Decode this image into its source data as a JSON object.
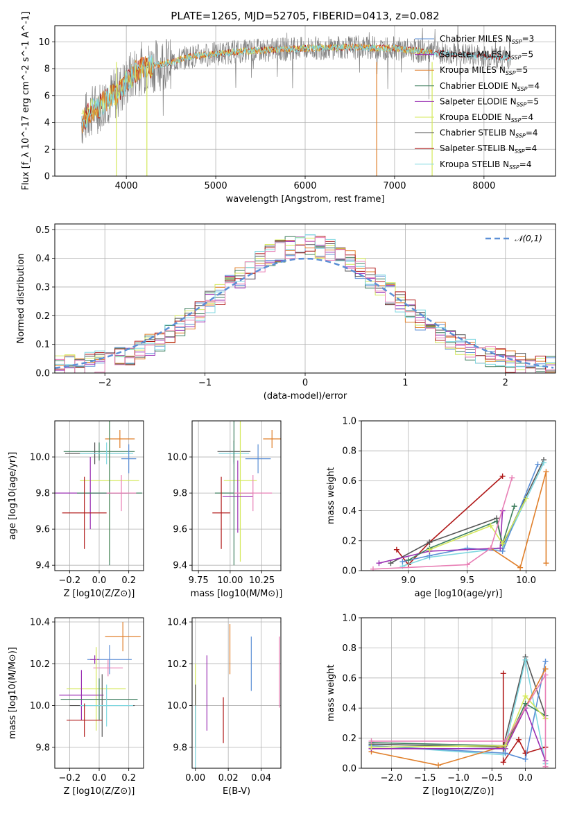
{
  "figure_title": "PLATE=1265, MJD=52705, FIBERID=0413, z=0.082",
  "colors": {
    "Chabrier MILES": "#5b8fd6",
    "Salpeter MILES": "#9a2fb3",
    "Kroupa MILES": "#e07f2a",
    "Chabrier ELODIE": "#3f7f5f",
    "Salpeter ELODIE": "#9a2fb3",
    "Kroupa ELODIE": "#d4e85a",
    "Chabrier STELIB": "#555555",
    "Salpeter STELIB": "#b01818",
    "Kroupa STELIB": "#7fd7e0",
    "data": "#808080",
    "gaussian": "#5b8fd6",
    "pink": "#e87fb5"
  },
  "chart_data": [
    {
      "id": "spectrum",
      "type": "line",
      "title": "PLATE=1265, MJD=52705, FIBERID=0413, z=0.082",
      "xlabel": "wavelength [Angstrom, rest frame]",
      "ylabel": "Flux [f_λ 10^-17 erg cm^-2 s^-1 A^-1]",
      "xlim": [
        3200,
        8800
      ],
      "ylim": [
        0,
        11.2
      ],
      "xticks": [
        4000,
        5000,
        6000,
        7000,
        8000
      ],
      "yticks": [
        0,
        2,
        4,
        6,
        8,
        10
      ],
      "legend_position": "right",
      "legend": [
        {
          "name": "Chabrier MILES",
          "nssp": "3"
        },
        {
          "name": "Salpeter MILES",
          "nssp": "5"
        },
        {
          "name": "Kroupa MILES",
          "nssp": "5"
        },
        {
          "name": "Chabrier ELODIE",
          "nssp": "4"
        },
        {
          "name": "Salpeter ELODIE",
          "nssp": "5"
        },
        {
          "name": "Kroupa ELODIE",
          "nssp": "4"
        },
        {
          "name": "Chabrier STELIB",
          "nssp": "4"
        },
        {
          "name": "Salpeter STELIB",
          "nssp": "4"
        },
        {
          "name": "Kroupa STELIB",
          "nssp": "4"
        }
      ],
      "continuum": {
        "x": [
          3500,
          3600,
          3700,
          3800,
          3900,
          4000,
          4100,
          4200,
          4300,
          4500,
          4700,
          5000,
          5300,
          5600,
          6000,
          6500,
          7000,
          7400,
          7800,
          8300
        ],
        "y": [
          4.0,
          4.8,
          5.2,
          5.8,
          6.2,
          7.0,
          7.8,
          8.1,
          8.2,
          8.5,
          8.9,
          9.1,
          9.3,
          9.4,
          9.5,
          9.6,
          9.5,
          9.2,
          9.0,
          8.8
        ]
      }
    },
    {
      "id": "residuals",
      "type": "line",
      "xlabel": "(data-model)/error",
      "ylabel": "Normed distribution",
      "xlim": [
        -2.5,
        2.5
      ],
      "ylim": [
        0,
        0.52
      ],
      "xticks": [
        -2,
        -1,
        0,
        1,
        2
      ],
      "yticks": [
        0.0,
        0.1,
        0.2,
        0.3,
        0.4,
        0.5
      ],
      "legend": [
        "𝒩(0,1)"
      ],
      "legend_position": "top-right",
      "gaussian": {
        "mean": 0,
        "sigma": 1
      }
    },
    {
      "id": "age_vs_Z",
      "type": "scatter",
      "xlabel": "Z [log10(Z/Z⊙)]",
      "ylabel": "age  [log10(age/yr)]",
      "xlim": [
        -0.3,
        0.3
      ],
      "ylim": [
        9.37,
        10.2
      ],
      "xticks": [
        -0.2,
        0.0,
        0.2
      ],
      "yticks": [
        9.4,
        9.6,
        9.8,
        10.0
      ],
      "points": [
        {
          "series": "Kroupa MILES",
          "x": 0.14,
          "y": 10.1,
          "xerr": 0.1,
          "yerr": 0.05
        },
        {
          "series": "Chabrier ELODIE",
          "x": 0.0,
          "y": 10.03,
          "xerr": 0.24,
          "yerr": 0.05
        },
        {
          "series": "Chabrier STELIB",
          "x": -0.03,
          "y": 10.02,
          "xerr": 0.2,
          "yerr": 0.06
        },
        {
          "series": "Kroupa STELIB",
          "x": 0.05,
          "y": 10.02,
          "xerr": 0.18,
          "yerr": 0.06
        },
        {
          "series": "Chabrier MILES",
          "x": 0.2,
          "y": 9.99,
          "xerr": 0.05,
          "yerr": 0.08
        },
        {
          "series": "Kroupa ELODIE",
          "x": 0.07,
          "y": 9.87,
          "xerr": 0.2,
          "yerr": 0.45
        },
        {
          "series": "Salpeter ELODIE",
          "x": -0.06,
          "y": 9.8,
          "xerr": 0.25,
          "yerr": 0.2
        },
        {
          "series": "Chabrier ELODIE",
          "x": 0.07,
          "y": 9.8,
          "xerr": 0.22,
          "yerr": 0.4
        },
        {
          "series": "pink",
          "x": 0.15,
          "y": 9.8,
          "xerr": 0.1,
          "yerr": 0.1
        },
        {
          "series": "Salpeter STELIB",
          "x": -0.1,
          "y": 9.69,
          "xerr": 0.15,
          "yerr": 0.2
        }
      ]
    },
    {
      "id": "age_vs_mass",
      "type": "scatter",
      "xlabel": "mass [log10(M/M⊙)]",
      "xlim": [
        9.7,
        10.4
      ],
      "ylim": [
        9.37,
        10.2
      ],
      "xticks": [
        9.75,
        10.0,
        10.25
      ],
      "yticks": [
        9.4,
        9.6,
        9.8,
        10.0
      ],
      "points": [
        {
          "series": "Kroupa MILES",
          "x": 10.33,
          "y": 10.1,
          "xerr": 0.07,
          "yerr": 0.05
        },
        {
          "series": "Chabrier STELIB",
          "x": 10.03,
          "y": 10.03,
          "xerr": 0.13,
          "yerr": 0.06
        },
        {
          "series": "Kroupa STELIB",
          "x": 10.03,
          "y": 10.02,
          "xerr": 0.12,
          "yerr": 0.06
        },
        {
          "series": "Chabrier MILES",
          "x": 10.22,
          "y": 9.99,
          "xerr": 0.1,
          "yerr": 0.08
        },
        {
          "series": "Kroupa ELODIE",
          "x": 10.08,
          "y": 9.87,
          "xerr": 0.13,
          "yerr": 0.45
        },
        {
          "series": "Salpeter ELODIE",
          "x": 10.06,
          "y": 9.78,
          "xerr": 0.12,
          "yerr": 0.2
        },
        {
          "series": "Chabrier ELODIE",
          "x": 10.03,
          "y": 9.8,
          "xerr": 0.15,
          "yerr": 0.4
        },
        {
          "series": "pink",
          "x": 10.18,
          "y": 9.8,
          "xerr": 0.15,
          "yerr": 0.1
        },
        {
          "series": "Salpeter STELIB",
          "x": 9.93,
          "y": 9.69,
          "xerr": 0.07,
          "yerr": 0.2
        }
      ]
    },
    {
      "id": "mass_weight_vs_age",
      "type": "line",
      "xlabel": "age  [log10(age/yr)]",
      "ylabel": "mass weight",
      "xlim": [
        8.6,
        10.25
      ],
      "ylim": [
        0,
        1
      ],
      "xticks": [
        9.0,
        9.5,
        10.0
      ],
      "yticks": [
        0.0,
        0.2,
        0.4,
        0.6,
        0.8,
        1.0
      ],
      "series": [
        {
          "name": "Salpeter STELIB",
          "x": [
            8.9,
            9.0,
            9.18,
            9.8
          ],
          "y": [
            0.14,
            0.04,
            0.19,
            0.63
          ]
        },
        {
          "name": "Chabrier STELIB",
          "x": [
            8.85,
            9.18,
            9.75,
            9.8,
            10.15
          ],
          "y": [
            0.05,
            0.19,
            0.35,
            0.17,
            0.74
          ]
        },
        {
          "name": "Kroupa STELIB",
          "x": [
            8.95,
            9.18,
            9.8,
            10.15
          ],
          "y": [
            0.03,
            0.09,
            0.15,
            0.72
          ]
        },
        {
          "name": "Chabrier MILES",
          "x": [
            8.95,
            9.18,
            9.5,
            9.8,
            10.1
          ],
          "y": [
            0.06,
            0.1,
            0.15,
            0.13,
            0.71
          ]
        },
        {
          "name": "Kroupa MILES",
          "x": [
            9.7,
            9.95,
            10.17,
            10.17
          ],
          "y": [
            0.15,
            0.02,
            0.66,
            0.05
          ]
        },
        {
          "name": "Salpeter ELODIE",
          "x": [
            8.75,
            9.18,
            9.78,
            9.8
          ],
          "y": [
            0.05,
            0.13,
            0.15,
            0.4
          ]
        },
        {
          "name": "Chabrier ELODIE",
          "x": [
            9.0,
            9.18,
            9.75,
            9.8,
            9.9
          ],
          "y": [
            0.07,
            0.15,
            0.33,
            0.18,
            0.43
          ]
        },
        {
          "name": "Kroupa ELODIE",
          "x": [
            9.18,
            9.7,
            9.8,
            10.0
          ],
          "y": [
            0.14,
            0.3,
            0.18,
            0.48
          ]
        },
        {
          "name": "pink",
          "x": [
            8.7,
            9.5,
            9.7,
            9.88
          ],
          "y": [
            0.01,
            0.04,
            0.15,
            0.62
          ]
        }
      ]
    },
    {
      "id": "mass_vs_Z",
      "type": "scatter",
      "xlabel": "Z [log10(Z/Z⊙)]",
      "ylabel": "mass [log10(M/M⊙)]",
      "xlim": [
        -0.3,
        0.3
      ],
      "ylim": [
        9.7,
        10.42
      ],
      "xticks": [
        -0.2,
        0.0,
        0.2
      ],
      "yticks": [
        9.8,
        10.0,
        10.2,
        10.4
      ],
      "points": [
        {
          "series": "Kroupa MILES",
          "x": 0.16,
          "y": 10.33,
          "xerr": 0.12,
          "yerr": 0.07
        },
        {
          "series": "Chabrier MILES",
          "x": 0.07,
          "y": 10.22,
          "xerr": 0.15,
          "yerr": 0.07
        },
        {
          "series": "Salpeter ELODIE",
          "x": -0.03,
          "y": 10.22,
          "xerr": 0.03,
          "yerr": 0.02
        },
        {
          "series": "pink",
          "x": 0.06,
          "y": 10.18,
          "xerr": 0.1,
          "yerr": 0.04
        },
        {
          "series": "Kroupa ELODIE",
          "x": -0.02,
          "y": 10.08,
          "xerr": 0.2,
          "yerr": 0.2
        },
        {
          "series": "Salpeter ELODIE",
          "x": -0.12,
          "y": 10.05,
          "xerr": 0.15,
          "yerr": 0.12
        },
        {
          "series": "Chabrier ELODIE",
          "x": 0.0,
          "y": 10.03,
          "xerr": 0.26,
          "yerr": 0.1
        },
        {
          "series": "Chabrier STELIB",
          "x": 0.02,
          "y": 10.0,
          "xerr": 0.22,
          "yerr": 0.15
        },
        {
          "series": "Kroupa STELIB",
          "x": 0.05,
          "y": 10.0,
          "xerr": 0.18,
          "yerr": 0.1
        },
        {
          "series": "Salpeter STELIB",
          "x": -0.1,
          "y": 9.93,
          "xerr": 0.12,
          "yerr": 0.08
        }
      ]
    },
    {
      "id": "mass_vs_ebv",
      "type": "scatter",
      "xlabel": "E(B-V)",
      "xlim": [
        -0.002,
        0.052
      ],
      "ylim": [
        9.7,
        10.42
      ],
      "xticks": [
        0.0,
        0.02,
        0.04
      ],
      "yticks": [
        9.8,
        10.0,
        10.2,
        10.4
      ],
      "points": [
        {
          "series": "Kroupa MILES",
          "x": 0.021,
          "y": 10.27,
          "yerr": 0.12
        },
        {
          "series": "Chabrier MILES",
          "x": 0.034,
          "y": 10.2,
          "yerr": 0.13
        },
        {
          "series": "Salpeter ELODIE",
          "x": 0.007,
          "y": 10.06,
          "yerr": 0.18
        },
        {
          "series": "pink",
          "x": 0.051,
          "y": 10.16,
          "yerr": 0.17
        },
        {
          "series": "Kroupa ELODIE",
          "x": 0.0,
          "y": 10.0,
          "yerr": 0.2
        },
        {
          "series": "Chabrier STELIB",
          "x": 0.0,
          "y": 9.95,
          "yerr": 0.15
        },
        {
          "series": "Kroupa STELIB",
          "x": 0.0,
          "y": 9.85,
          "yerr": 0.15
        },
        {
          "series": "Salpeter STELIB",
          "x": 0.017,
          "y": 9.93,
          "yerr": 0.11
        }
      ]
    },
    {
      "id": "mass_weight_vs_Z",
      "type": "line",
      "xlabel": "Z [log10(Z/Z⊙)]",
      "ylabel": "mass weight",
      "xlim": [
        -2.45,
        0.45
      ],
      "ylim": [
        0,
        1
      ],
      "xticks": [
        -2.0,
        -1.5,
        -1.0,
        -0.5,
        0.0
      ],
      "yticks": [
        0.0,
        0.2,
        0.4,
        0.6,
        0.8,
        1.0
      ],
      "series": [
        {
          "name": "Salpeter STELIB",
          "x": [
            -0.33,
            -0.33,
            -0.1,
            0.0,
            0.3
          ],
          "y": [
            0.63,
            0.04,
            0.19,
            0.1,
            0.14
          ]
        },
        {
          "name": "Chabrier STELIB",
          "x": [
            -2.3,
            -0.33,
            0.0,
            0.3
          ],
          "y": [
            0.16,
            0.14,
            0.74,
            0.35
          ]
        },
        {
          "name": "Kroupa STELIB",
          "x": [
            -2.3,
            -0.33,
            0.0,
            0.3
          ],
          "y": [
            0.15,
            0.09,
            0.72,
            0.03
          ]
        },
        {
          "name": "Chabrier MILES",
          "x": [
            -2.3,
            -0.3,
            0.0,
            0.3
          ],
          "y": [
            0.15,
            0.1,
            0.06,
            0.71
          ]
        },
        {
          "name": "Kroupa MILES",
          "x": [
            -2.3,
            -1.3,
            -0.3,
            0.3
          ],
          "y": [
            0.11,
            0.02,
            0.15,
            0.66
          ]
        },
        {
          "name": "Salpeter ELODIE",
          "x": [
            -2.3,
            -0.3,
            0.0,
            0.3
          ],
          "y": [
            0.13,
            0.13,
            0.4,
            0.05
          ]
        },
        {
          "name": "Chabrier ELODIE",
          "x": [
            -2.3,
            -0.3,
            0.0,
            0.3
          ],
          "y": [
            0.17,
            0.15,
            0.43,
            0.35
          ]
        },
        {
          "name": "Kroupa ELODIE",
          "x": [
            -2.3,
            -0.3,
            0.0,
            0.3
          ],
          "y": [
            0.14,
            0.15,
            0.48,
            0.33
          ]
        },
        {
          "name": "pink",
          "x": [
            -2.3,
            -0.3,
            0.3,
            0.3
          ],
          "y": [
            0.18,
            0.18,
            0.62,
            0.01
          ]
        }
      ]
    }
  ]
}
